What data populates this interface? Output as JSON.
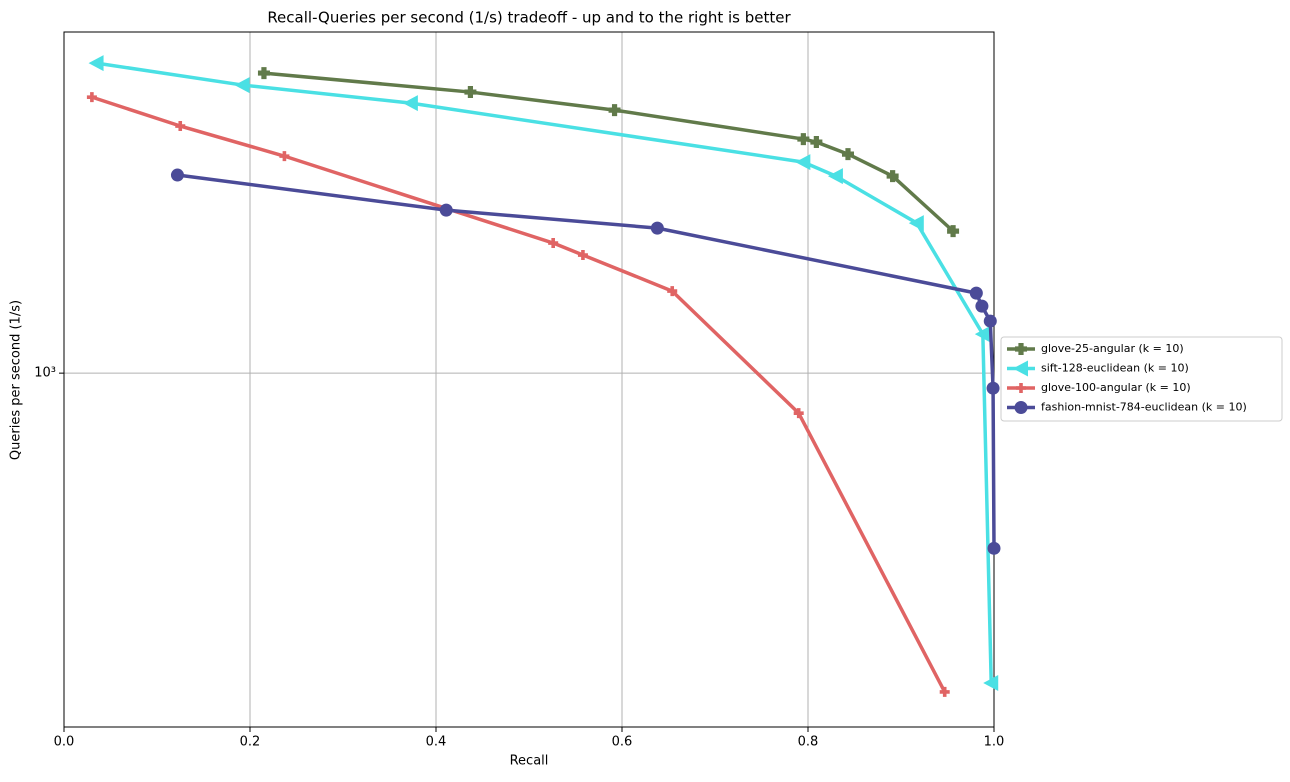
{
  "chart_data": {
    "type": "line",
    "title": "Recall-Queries per second (1/s) tradeoff - up and to the right is better",
    "x_label": "Recall",
    "y_label": "Queries per second (1/s)",
    "xlim": [
      0,
      1
    ],
    "ylim": [
      228,
      4159
    ],
    "y_scale": "log",
    "grid": true,
    "legend": "outside right",
    "xticks": [
      {
        "value": 0,
        "label": "0.0"
      },
      0.2,
      0.4,
      0.6,
      0.8,
      {
        "value": 1,
        "label": "1.0"
      }
    ],
    "yticks": [
      {
        "value": 1000,
        "label": "10³"
      }
    ],
    "series": [
      {
        "name": "glove-25-angular (k = 10)",
        "color": "#617a4a",
        "marker": "plus",
        "x": [
          0.215,
          0.437,
          0.592,
          0.795,
          0.809,
          0.843,
          0.891,
          0.956
        ],
        "values": [
          3503,
          3236,
          3001,
          2659,
          2626,
          2497,
          2278,
          1810
        ]
      },
      {
        "name": "sift-128-euclidean (k = 10)",
        "color": "#4ae0e4",
        "marker": "triangle-left",
        "x": [
          0.035,
          0.192,
          0.373,
          0.795,
          0.83,
          0.917,
          0.988,
          0.997
        ],
        "values": [
          3652,
          3332,
          3090,
          2415,
          2278,
          1872,
          1177,
          274
        ]
      },
      {
        "name": "glove-100-angular (k = 10)",
        "color": "#e06464",
        "marker": "small-plus",
        "x": [
          0.03,
          0.125,
          0.237,
          0.526,
          0.558,
          0.654,
          0.79,
          0.947
        ],
        "values": [
          3168,
          2808,
          2476,
          1722,
          1638,
          1409,
          846,
          264
        ]
      },
      {
        "name": "fashion-mnist-784-euclidean (k = 10)",
        "color": "#4b4b98",
        "marker": "circle",
        "x": [
          0.122,
          0.411,
          0.638,
          0.981,
          0.987,
          0.996,
          0.999,
          1.0
        ],
        "values": [
          2288,
          1976,
          1833,
          1397,
          1323,
          1243,
          939,
          481
        ]
      }
    ]
  }
}
